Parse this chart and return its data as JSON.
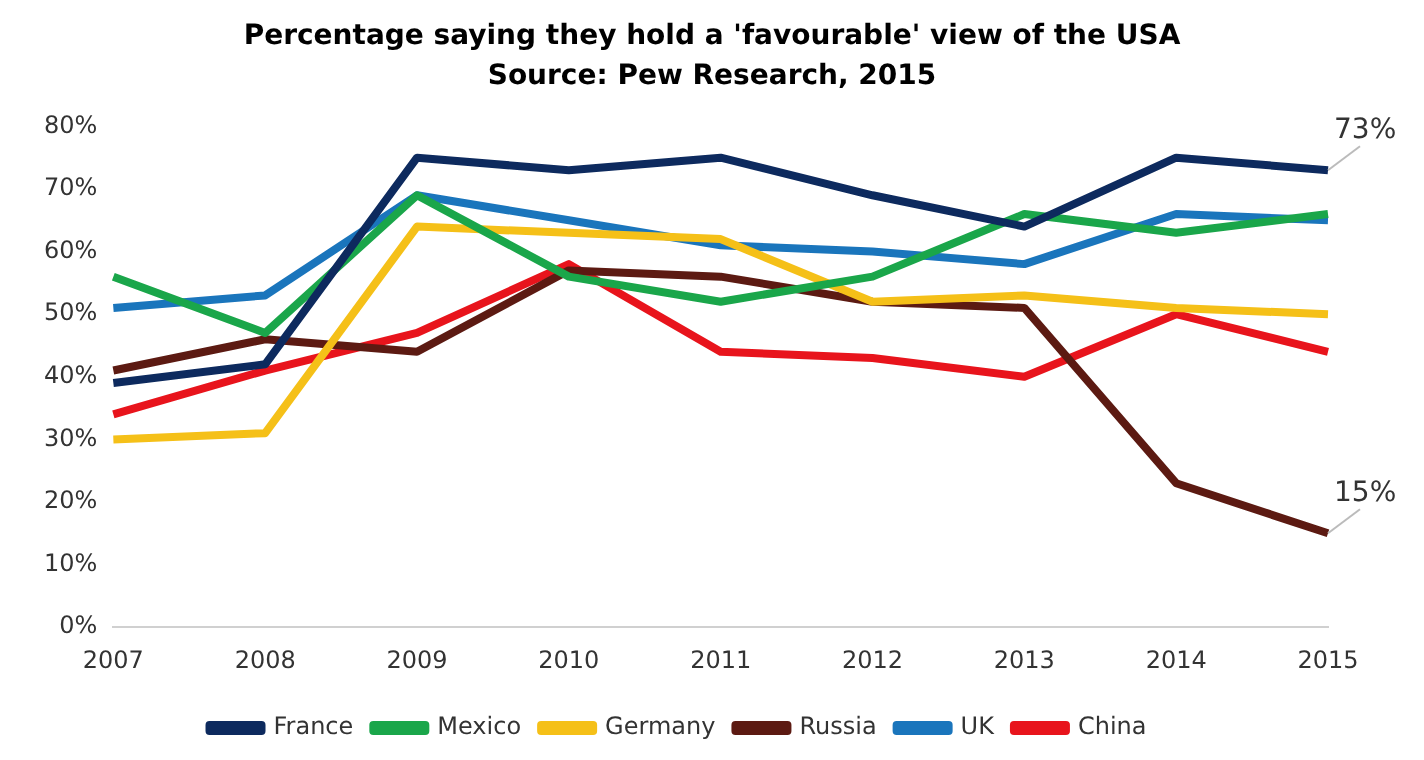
{
  "chart_data": {
    "type": "line",
    "title": "Percentage saying they hold a 'favourable' view of the USA",
    "subtitle": "Source: Pew Research, 2015",
    "categories": [
      "2007",
      "2008",
      "2009",
      "2010",
      "2011",
      "2012",
      "2013",
      "2014",
      "2015"
    ],
    "series": [
      {
        "name": "France",
        "color": "#0d2a5e",
        "values": [
          39,
          42,
          75,
          73,
          75,
          69,
          64,
          75,
          73
        ]
      },
      {
        "name": "Mexico",
        "color": "#1aa64a",
        "values": [
          56,
          47,
          69,
          56,
          52,
          56,
          66,
          63,
          66
        ]
      },
      {
        "name": "Germany",
        "color": "#f5c018",
        "values": [
          30,
          31,
          64,
          63,
          62,
          52,
          53,
          51,
          50
        ]
      },
      {
        "name": "Russia",
        "color": "#5c1a12",
        "values": [
          41,
          46,
          44,
          57,
          56,
          52,
          51,
          23,
          15
        ]
      },
      {
        "name": "UK",
        "color": "#1a75bc",
        "values": [
          51,
          53,
          69,
          65,
          61,
          60,
          58,
          66,
          65
        ]
      },
      {
        "name": "China",
        "color": "#e8141c",
        "values": [
          34,
          41,
          47,
          58,
          44,
          43,
          40,
          50,
          44
        ]
      }
    ],
    "ylim": [
      0,
      80
    ],
    "yticks": [
      {
        "value": 0,
        "label": "0%"
      },
      {
        "value": 10,
        "label": "10%"
      },
      {
        "value": 20,
        "label": "20%"
      },
      {
        "value": 30,
        "label": "30%"
      },
      {
        "value": 40,
        "label": "40%"
      },
      {
        "value": 50,
        "label": "50%"
      },
      {
        "value": 60,
        "label": "60%"
      },
      {
        "value": 70,
        "label": "70%"
      },
      {
        "value": 80,
        "label": "80%"
      }
    ],
    "annotations": [
      {
        "text": "73%",
        "x": "2015",
        "y": 73
      },
      {
        "text": "15%",
        "x": "2015",
        "y": 15
      }
    ],
    "grid": false,
    "legend": "bottom",
    "marker": "none",
    "line_style": "solid"
  }
}
